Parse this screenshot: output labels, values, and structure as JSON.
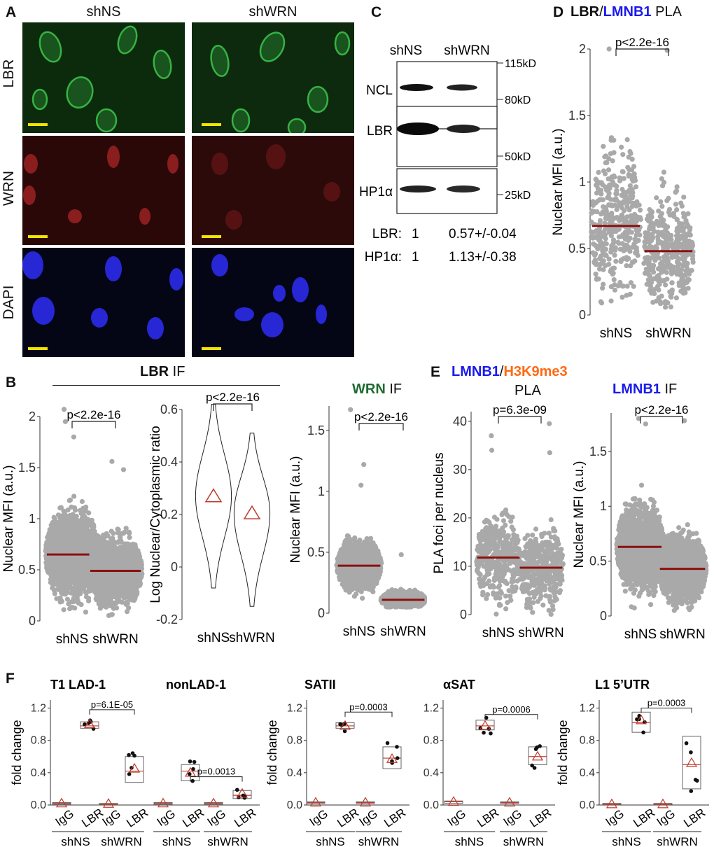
{
  "panels": {
    "A": {
      "label": "A",
      "col_labels": [
        "shNS",
        "shWRN"
      ],
      "row_labels": [
        "LBR",
        "WRN",
        "DAPI"
      ],
      "colors": {
        "LBR": "#2f9a3a",
        "WRN": "#c62020",
        "DAPI": "#2a2ae0"
      }
    },
    "B": {
      "label": "B",
      "header": "LBR",
      "header_suffix": "IF",
      "wrn_title": "WRN",
      "wrn_suffix": "IF"
    },
    "C": {
      "label": "C",
      "lanes": [
        "shNS",
        "shWRN"
      ],
      "rows": [
        "NCL",
        "LBR",
        "HP1α"
      ],
      "markers": [
        "115kD",
        "80kD",
        "50kD",
        "25kD"
      ],
      "quant": [
        {
          "name": "LBR:",
          "shNS": "1",
          "shWRN": "0.57+/-0.04"
        },
        {
          "name": "HP1α:",
          "shNS": "1",
          "shWRN": "1.13+/-0.38"
        }
      ]
    },
    "D": {
      "label": "D",
      "t1": "LBR",
      "t2": "/",
      "t3": "LMNB1",
      "t4": "PLA"
    },
    "E": {
      "label": "E",
      "t1": "LMNB1",
      "t2": "/",
      "t3": "H3K9me3",
      "t4": "PLA",
      "right_t1": "LMNB1",
      "right_t2": "IF"
    },
    "F": {
      "label": "F"
    }
  },
  "colors": {
    "point": "#a9a9a9",
    "mean": "#8b1010",
    "blue": "#1a1aee",
    "orange": "#ff6a13",
    "green": "#1d6b2f",
    "triangle": "#c0392b"
  },
  "chart_data": [
    {
      "id": "D",
      "type": "scatter",
      "ylabel": "Nuclear MFI (a.u.)",
      "categories": [
        "shNS",
        "shWRN"
      ],
      "ylim": [
        0,
        2.0
      ],
      "yticks": [
        0,
        0.5,
        1.0,
        1.5,
        2.0
      ],
      "means": [
        0.67,
        0.48
      ],
      "spread": [
        [
          0.08,
          1.9
        ],
        [
          0.03,
          1.55
        ]
      ],
      "outliers": [
        [
          2.0
        ],
        [
          1.99
        ]
      ],
      "pvalue": "p<2.2e-16",
      "n": 380
    },
    {
      "id": "B1",
      "type": "scatter",
      "ylabel": "Nuclear MFI (a.u.)",
      "categories": [
        "shNS",
        "shWRN"
      ],
      "ylim": [
        0,
        2.0
      ],
      "yticks": [
        0,
        0.5,
        1.0,
        1.5,
        2.0
      ],
      "means": [
        0.65,
        0.49
      ],
      "spread": [
        [
          0.05,
          1.55
        ],
        [
          0.05,
          1.2
        ]
      ],
      "outliers": [
        [
          2.07,
          1.95,
          1.8
        ],
        [
          1.56,
          1.48
        ]
      ],
      "pvalue": "p<2.2e-16",
      "n": 1400
    },
    {
      "id": "B2",
      "type": "violin",
      "ylabel": "Log Nuclear/Cytoplasmic ratio",
      "categories": [
        "shNS",
        "shWRN"
      ],
      "ylim": [
        -0.2,
        0.6
      ],
      "yticks": [
        -0.2,
        0.0,
        0.2,
        0.4,
        0.6
      ],
      "means": [
        0.27,
        0.205
      ],
      "range": [
        [
          -0.08,
          0.62
        ],
        [
          -0.15,
          0.51
        ]
      ],
      "pvalue": "p<2.2e-16"
    },
    {
      "id": "B3",
      "type": "scatter",
      "ylabel": "Nuclear MFI (a.u.)",
      "categories": [
        "shNS",
        "shWRN"
      ],
      "ylim": [
        0,
        1.7
      ],
      "yticks": [
        0,
        0.5,
        1.0,
        1.5
      ],
      "means": [
        0.39,
        0.11
      ],
      "spread": [
        [
          0.1,
          0.8
        ],
        [
          0.05,
          0.3
        ]
      ],
      "outliers": [
        [
          1.67,
          1.22,
          1.05
        ],
        [
          0.48
        ]
      ],
      "pvalue": "p<2.2e-16",
      "n": 1000
    },
    {
      "id": "E1",
      "type": "scatter",
      "ylabel": "PLA foci per nucleus",
      "categories": [
        "shNS",
        "shWRN"
      ],
      "ylim": [
        0,
        42
      ],
      "yticks": [
        0,
        10,
        20,
        30,
        40
      ],
      "means": [
        11.8,
        9.7
      ],
      "spread": [
        [
          0,
          30
        ],
        [
          0,
          28
        ]
      ],
      "outliers": [
        [
          37,
          34
        ],
        [
          39.5,
          33.5
        ]
      ],
      "pvalue": "p=6.3e-09",
      "n": 380
    },
    {
      "id": "E2",
      "type": "scatter",
      "ylabel": "Nuclear MFI (a.u.)",
      "categories": [
        "shNS",
        "shWRN"
      ],
      "ylim": [
        0,
        1.85
      ],
      "yticks": [
        0,
        0.5,
        1.0,
        1.5
      ],
      "means": [
        0.63,
        0.43
      ],
      "spread": [
        [
          0.05,
          1.4
        ],
        [
          0.05,
          1.1
        ]
      ],
      "outliers": [
        [
          1.8,
          1.75
        ],
        [
          1.78
        ]
      ],
      "pvalue": "p<2.2e-16",
      "n": 1400
    },
    {
      "id": "F1",
      "type": "box",
      "ylabel": "fold change",
      "titles": [
        "T1 LAD-1",
        "nonLAD-1"
      ],
      "ylim": [
        0,
        1.3
      ],
      "yticks": [
        0.0,
        0.4,
        0.8,
        1.2
      ],
      "xticks": [
        "IgG",
        "LBR",
        "IgG",
        "LBR",
        "IgG",
        "LBR",
        "IgG",
        "LBR"
      ],
      "groups": [
        "shNS",
        "shWRN",
        "shNS",
        "shWRN"
      ],
      "boxes": [
        [
          0.01,
          0.02,
          0.03
        ],
        [
          0.95,
          0.98,
          1.03
        ],
        [
          0.005,
          0.01,
          0.02
        ],
        [
          0.28,
          0.42,
          0.6
        ],
        [
          0.01,
          0.02,
          0.03
        ],
        [
          0.3,
          0.42,
          0.5
        ],
        [
          0.01,
          0.02,
          0.03
        ],
        [
          0.08,
          0.12,
          0.18
        ]
      ],
      "means": [
        0.02,
        1.0,
        0.015,
        0.45,
        0.02,
        0.4,
        0.02,
        0.14
      ],
      "pvalues": [
        {
          "text": "p=6.1E-05",
          "from": 1,
          "to": 3,
          "y": 1.18
        },
        {
          "text": "p=0.0013",
          "from": 5,
          "to": 7,
          "y": 0.35
        }
      ]
    },
    {
      "id": "F2",
      "type": "box",
      "ylabel": "fold change",
      "titles": [
        "SATII"
      ],
      "ylim": [
        0,
        1.3
      ],
      "yticks": [
        0.0,
        0.4,
        0.8,
        1.2
      ],
      "xticks": [
        "IgG",
        "LBR",
        "IgG",
        "LBR"
      ],
      "groups": [
        "shNS",
        "shWRN"
      ],
      "boxes": [
        [
          0.02,
          0.03,
          0.04
        ],
        [
          0.95,
          0.98,
          1.02
        ],
        [
          0.02,
          0.03,
          0.04
        ],
        [
          0.45,
          0.58,
          0.72
        ]
      ],
      "means": [
        0.03,
        0.98,
        0.03,
        0.57
      ],
      "pvalues": [
        {
          "text": "p=0.0003",
          "from": 1,
          "to": 3,
          "y": 1.15
        }
      ]
    },
    {
      "id": "F3",
      "type": "box",
      "ylabel": "",
      "titles": [
        "αSAT"
      ],
      "ylim": [
        0,
        1.3
      ],
      "yticks": [
        0.0,
        0.4,
        0.8,
        1.2
      ],
      "xticks": [
        "IgG",
        "LBR",
        "IgG",
        "LBR"
      ],
      "groups": [
        "shNS",
        "shWRN"
      ],
      "boxes": [
        [
          0.02,
          0.04,
          0.05
        ],
        [
          0.93,
          0.98,
          1.05
        ],
        [
          0.02,
          0.03,
          0.04
        ],
        [
          0.5,
          0.6,
          0.72
        ]
      ],
      "means": [
        0.04,
        0.98,
        0.03,
        0.6
      ],
      "pvalues": [
        {
          "text": "p=0.0006",
          "from": 1,
          "to": 3,
          "y": 1.12
        }
      ]
    },
    {
      "id": "F4",
      "type": "box",
      "ylabel": "fold change",
      "titles": [
        "L1 5’UTR"
      ],
      "ylim": [
        0,
        1.3
      ],
      "yticks": [
        0.0,
        0.4,
        0.8,
        1.2
      ],
      "xticks": [
        "IgG",
        "LBR",
        "IgG",
        "LBR"
      ],
      "groups": [
        "shNS",
        "shWRN"
      ],
      "boxes": [
        [
          0.005,
          0.01,
          0.02
        ],
        [
          0.9,
          1.02,
          1.15
        ],
        [
          0.005,
          0.01,
          0.02
        ],
        [
          0.2,
          0.5,
          0.85
        ]
      ],
      "means": [
        0.01,
        1.05,
        0.01,
        0.52
      ],
      "pvalues": [
        {
          "text": "p=0.0003",
          "from": 1,
          "to": 3,
          "y": 1.2
        }
      ]
    }
  ]
}
